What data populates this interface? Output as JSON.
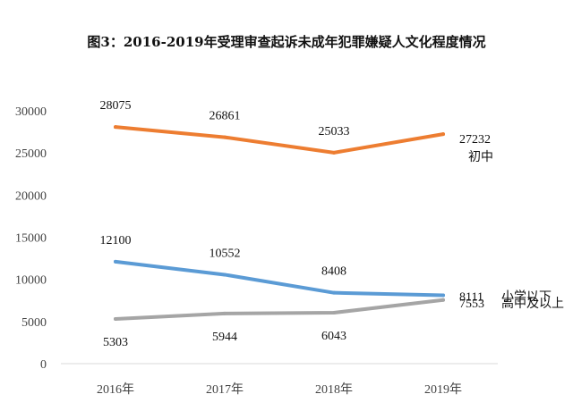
{
  "chart_data": {
    "type": "line",
    "title": "图3：2016-2019年受理审查起诉未成年犯罪嫌疑人文化程度情况",
    "categories": [
      "2016年",
      "2017年",
      "2018年",
      "2019年"
    ],
    "ylim": [
      0,
      30000
    ],
    "yticks": [
      0,
      5000,
      10000,
      15000,
      20000,
      25000,
      30000
    ],
    "grid": false,
    "series": [
      {
        "name": "初中",
        "values": [
          28075,
          26861,
          25033,
          27232
        ],
        "color": "#ED7D31"
      },
      {
        "name": "小学以下",
        "values": [
          12100,
          10552,
          8408,
          8111
        ],
        "color": "#5B9BD5"
      },
      {
        "name": "高中及以上",
        "values": [
          5303,
          5944,
          6043,
          7553
        ],
        "color": "#A5A5A5"
      }
    ]
  }
}
